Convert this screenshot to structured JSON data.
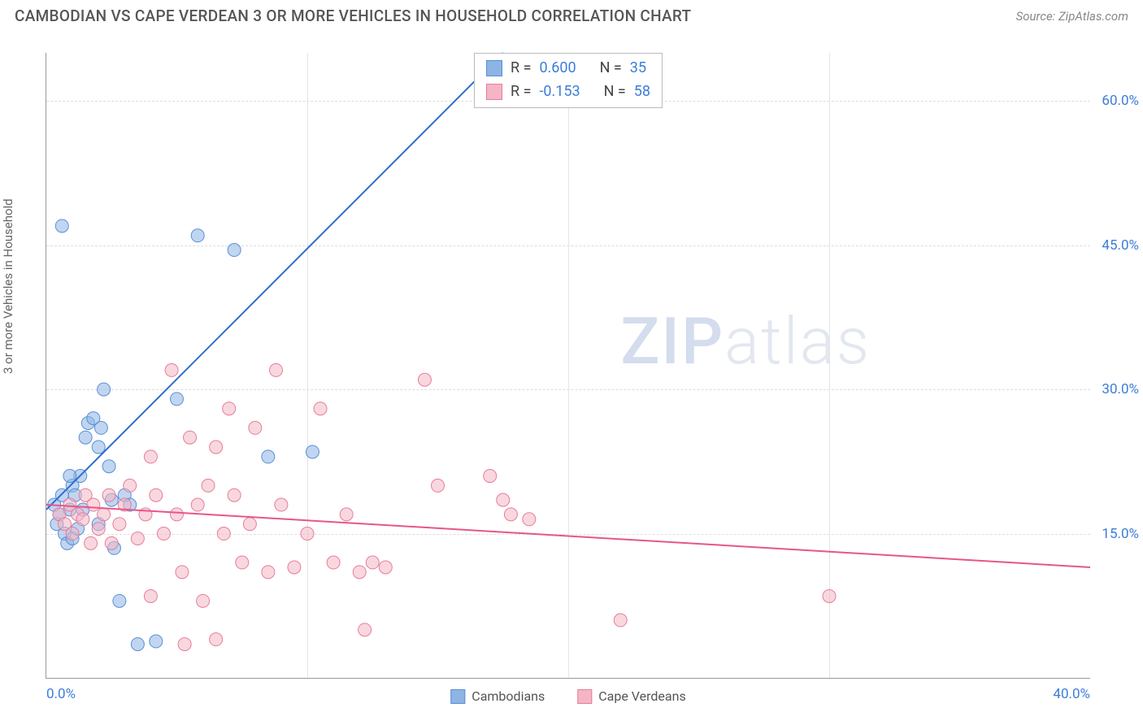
{
  "header": {
    "title": "CAMBODIAN VS CAPE VERDEAN 3 OR MORE VEHICLES IN HOUSEHOLD CORRELATION CHART",
    "source": "Source: ZipAtlas.com"
  },
  "watermark": {
    "part1": "ZIP",
    "part2": "atlas"
  },
  "chart": {
    "type": "scatter",
    "y_axis_label": "3 or more Vehicles in Household",
    "xlim": [
      0,
      40
    ],
    "ylim": [
      0,
      65
    ],
    "x_ticks": [
      {
        "v": 0,
        "label": "0.0%"
      },
      {
        "v": 40,
        "label": "40.0%"
      }
    ],
    "y_ticks": [
      {
        "v": 15,
        "label": "15.0%"
      },
      {
        "v": 30,
        "label": "30.0%"
      },
      {
        "v": 45,
        "label": "45.0%"
      },
      {
        "v": 60,
        "label": "60.0%"
      }
    ],
    "x_gridlines_minor_step": 10,
    "background_color": "#ffffff",
    "grid_color": "#dddddd",
    "axis_color": "#999999",
    "tick_label_color": "#3b7dd8",
    "tick_label_fontsize": 17,
    "marker_radius": 8,
    "marker_opacity": 0.55,
    "line_width": 2,
    "series": [
      {
        "name": "Cambodians",
        "fill": "#8db4e3",
        "stroke": "#5a8fd6",
        "line_color": "#2f6fd0",
        "R": "0.600",
        "N": "35",
        "trend": {
          "x1": 0,
          "y1": 17.5,
          "x2": 17.5,
          "y2": 65
        },
        "points": [
          [
            0.3,
            18
          ],
          [
            0.4,
            16
          ],
          [
            0.5,
            17
          ],
          [
            0.6,
            19
          ],
          [
            0.7,
            15
          ],
          [
            0.8,
            14
          ],
          [
            0.9,
            17.5
          ],
          [
            1.0,
            20
          ],
          [
            1.1,
            19
          ],
          [
            1.3,
            21
          ],
          [
            1.5,
            25
          ],
          [
            1.6,
            26.5
          ],
          [
            1.8,
            27
          ],
          [
            2.0,
            24
          ],
          [
            2.1,
            26
          ],
          [
            2.2,
            30
          ],
          [
            2.4,
            22
          ],
          [
            2.5,
            18.5
          ],
          [
            2.6,
            13.5
          ],
          [
            2.8,
            8
          ],
          [
            3.0,
            19
          ],
          [
            3.2,
            18
          ],
          [
            3.5,
            3.5
          ],
          [
            4.2,
            3.8
          ],
          [
            5.0,
            29
          ],
          [
            5.8,
            46
          ],
          [
            7.2,
            44.5
          ],
          [
            8.5,
            23
          ],
          [
            10.2,
            23.5
          ],
          [
            1.0,
            14.5
          ],
          [
            1.2,
            15.5
          ],
          [
            0.6,
            47
          ],
          [
            2.0,
            16
          ],
          [
            1.4,
            17.5
          ],
          [
            0.9,
            21
          ]
        ]
      },
      {
        "name": "Cape Verdeans",
        "fill": "#f4b6c4",
        "stroke": "#e77d9a",
        "line_color": "#e8558a",
        "R": "-0.153",
        "N": "58",
        "trend": {
          "x1": 0,
          "y1": 18,
          "x2": 40,
          "y2": 11.5
        },
        "points": [
          [
            0.5,
            17
          ],
          [
            0.7,
            16
          ],
          [
            0.9,
            18
          ],
          [
            1.0,
            15
          ],
          [
            1.2,
            17
          ],
          [
            1.4,
            16.5
          ],
          [
            1.5,
            19
          ],
          [
            1.7,
            14
          ],
          [
            1.8,
            18
          ],
          [
            2.0,
            15.5
          ],
          [
            2.2,
            17
          ],
          [
            2.4,
            19
          ],
          [
            2.5,
            14
          ],
          [
            2.8,
            16
          ],
          [
            3.0,
            18
          ],
          [
            3.2,
            20
          ],
          [
            3.5,
            14.5
          ],
          [
            3.8,
            17
          ],
          [
            4.0,
            23
          ],
          [
            4.2,
            19
          ],
          [
            4.5,
            15
          ],
          [
            4.8,
            32
          ],
          [
            5.0,
            17
          ],
          [
            5.2,
            11
          ],
          [
            5.5,
            25
          ],
          [
            5.8,
            18
          ],
          [
            6.0,
            8
          ],
          [
            6.2,
            20
          ],
          [
            6.5,
            24
          ],
          [
            6.8,
            15
          ],
          [
            7.0,
            28
          ],
          [
            7.2,
            19
          ],
          [
            7.5,
            12
          ],
          [
            7.8,
            16
          ],
          [
            8.0,
            26
          ],
          [
            8.5,
            11
          ],
          [
            8.8,
            32
          ],
          [
            9.0,
            18
          ],
          [
            9.5,
            11.5
          ],
          [
            10.0,
            15
          ],
          [
            10.5,
            28
          ],
          [
            11.0,
            12
          ],
          [
            11.5,
            17
          ],
          [
            12.0,
            11
          ],
          [
            12.2,
            5
          ],
          [
            12.5,
            12
          ],
          [
            13.0,
            11.5
          ],
          [
            14.5,
            31
          ],
          [
            15.0,
            20
          ],
          [
            17.0,
            21
          ],
          [
            17.5,
            18.5
          ],
          [
            17.8,
            17
          ],
          [
            18.5,
            16.5
          ],
          [
            22.0,
            6
          ],
          [
            30.0,
            8.5
          ],
          [
            5.3,
            3.5
          ],
          [
            4.0,
            8.5
          ],
          [
            6.5,
            4
          ]
        ]
      }
    ],
    "stats_box": {
      "R_label": "R =",
      "N_label": "N ="
    },
    "legend_bottom": [
      {
        "label": "Cambodians",
        "fill": "#8db4e3",
        "stroke": "#5a8fd6"
      },
      {
        "label": "Cape Verdeans",
        "fill": "#f4b6c4",
        "stroke": "#e77d9a"
      }
    ]
  }
}
